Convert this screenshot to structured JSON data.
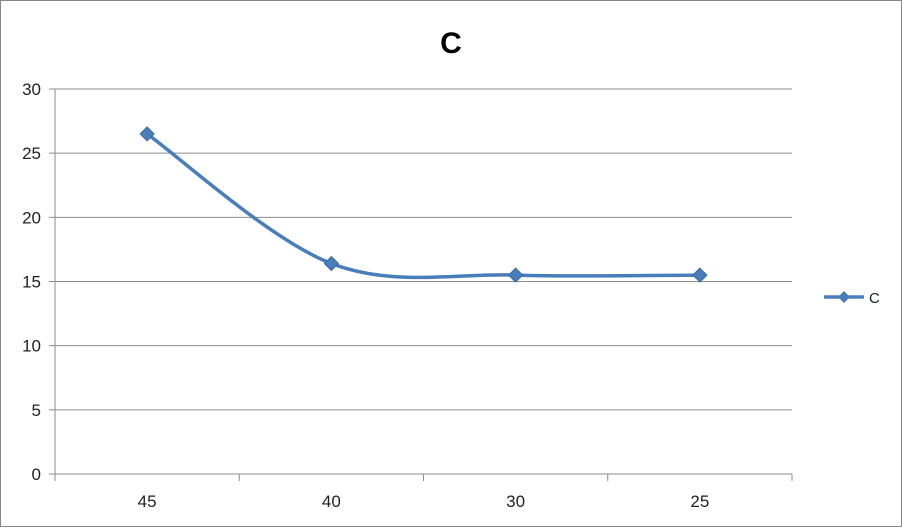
{
  "chart_data": {
    "type": "line",
    "title": "C",
    "categories": [
      "45",
      "40",
      "30",
      "25"
    ],
    "series": [
      {
        "name": "C",
        "values": [
          26.5,
          16.4,
          15.5,
          15.5
        ]
      }
    ],
    "ylim": [
      0,
      30
    ],
    "yticks": [
      "0",
      "5",
      "10",
      "15",
      "20",
      "25",
      "30"
    ],
    "grid": true,
    "legend_position": "right",
    "smooth": true,
    "marker": "diamond",
    "colors": {
      "series": "#4a7ebb",
      "grid": "#8c8c8c",
      "axis": "#8c8c8c"
    }
  }
}
